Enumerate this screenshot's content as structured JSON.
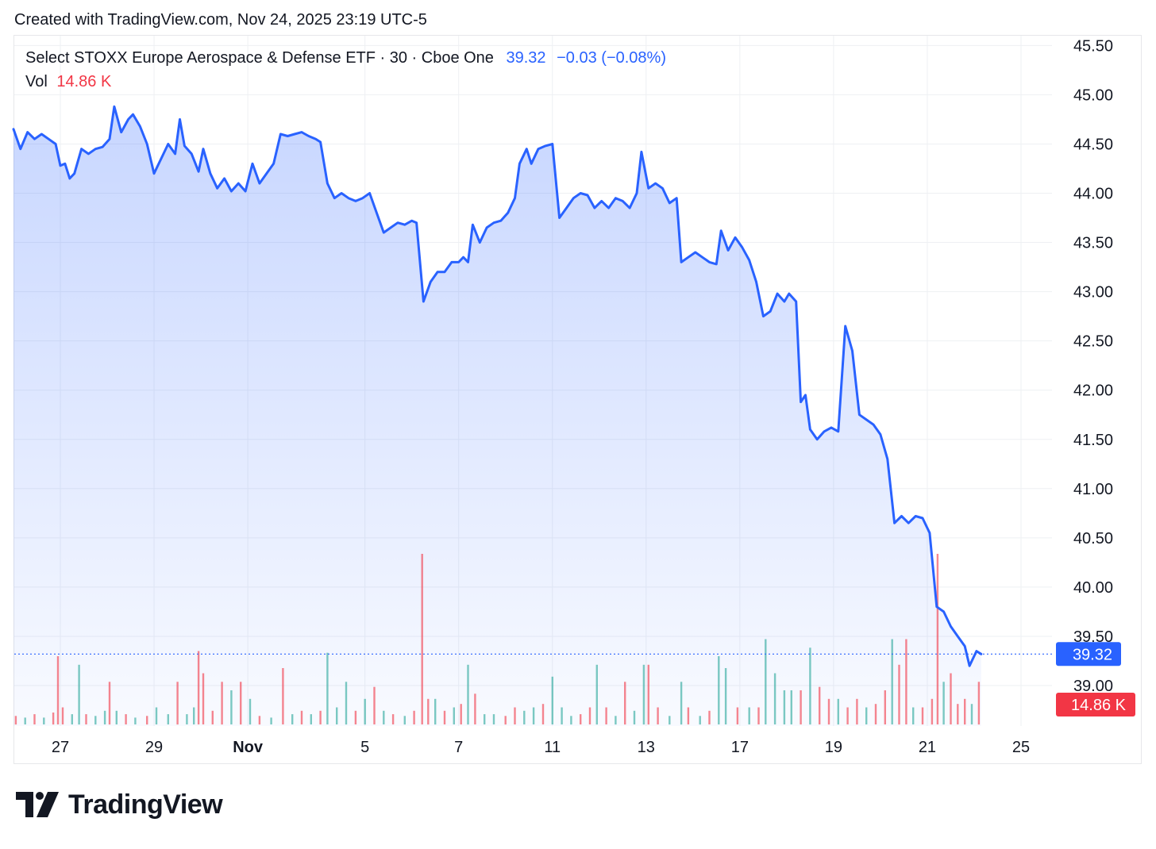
{
  "header": {
    "created_text": "Created with TradingView.com, Nov 24, 2025 23:19 UTC-5"
  },
  "legend": {
    "symbol": "Select STOXX Europe Aerospace & Defense ETF · 30 · Cboe One",
    "price": "39.32",
    "change": "−0.03 (−0.08%)",
    "vol_label": "Vol",
    "vol_value": "14.86 K"
  },
  "brand": {
    "text": "TradingView",
    "logo_icon": "tradingview-logo-icon"
  },
  "colors": {
    "line": "#2962ff",
    "vol_up": "#26a69a",
    "vol_down": "#f23645",
    "price_badge": "#2962ff",
    "vol_badge": "#f23645"
  },
  "chart_data": {
    "type": "area",
    "title": "",
    "xlabel": "",
    "ylabel": "",
    "ylim": [
      38.6,
      45.62
    ],
    "yticks": [
      "39.00",
      "39.50",
      "40.00",
      "40.50",
      "41.00",
      "41.50",
      "42.00",
      "42.50",
      "43.00",
      "43.50",
      "44.00",
      "44.50",
      "45.00",
      "45.50"
    ],
    "xticks": [
      {
        "label": "27",
        "x": 1
      },
      {
        "label": "29",
        "x": 3
      },
      {
        "label": "Nov",
        "x": 5
      },
      {
        "label": "5",
        "x": 7.5
      },
      {
        "label": "7",
        "x": 9.5
      },
      {
        "label": "11",
        "x": 11.5
      },
      {
        "label": "13",
        "x": 13.5
      },
      {
        "label": "17",
        "x": 15.5
      },
      {
        "label": "19",
        "x": 17.5
      },
      {
        "label": "21",
        "x": 19.5
      },
      {
        "label": "25",
        "x": 21.5
      }
    ],
    "x_range": [
      0,
      22.7
    ],
    "last_price": 39.32,
    "last_price_label": "39.32",
    "last_volume_label": "14.86 K",
    "series": [
      {
        "values_xy": [
          [
            0,
            44.65
          ],
          [
            0.15,
            44.45
          ],
          [
            0.3,
            44.62
          ],
          [
            0.45,
            44.55
          ],
          [
            0.6,
            44.6
          ],
          [
            0.75,
            44.55
          ],
          [
            0.9,
            44.5
          ],
          [
            1.0,
            44.28
          ],
          [
            1.1,
            44.3
          ],
          [
            1.2,
            44.15
          ],
          [
            1.3,
            44.2
          ],
          [
            1.45,
            44.45
          ],
          [
            1.6,
            44.4
          ],
          [
            1.75,
            44.45
          ],
          [
            1.9,
            44.47
          ],
          [
            2.05,
            44.55
          ],
          [
            2.15,
            44.88
          ],
          [
            2.3,
            44.62
          ],
          [
            2.45,
            44.75
          ],
          [
            2.55,
            44.8
          ],
          [
            2.7,
            44.68
          ],
          [
            2.85,
            44.5
          ],
          [
            3.0,
            44.2
          ],
          [
            3.15,
            44.35
          ],
          [
            3.3,
            44.5
          ],
          [
            3.45,
            44.4
          ],
          [
            3.55,
            44.75
          ],
          [
            3.65,
            44.48
          ],
          [
            3.8,
            44.4
          ],
          [
            3.95,
            44.22
          ],
          [
            4.05,
            44.45
          ],
          [
            4.2,
            44.2
          ],
          [
            4.35,
            44.05
          ],
          [
            4.5,
            44.15
          ],
          [
            4.65,
            44.02
          ],
          [
            4.8,
            44.1
          ],
          [
            4.95,
            44.02
          ],
          [
            5.1,
            44.3
          ],
          [
            5.25,
            44.1
          ],
          [
            5.4,
            44.2
          ],
          [
            5.55,
            44.3
          ],
          [
            5.7,
            44.6
          ],
          [
            5.85,
            44.58
          ],
          [
            6.0,
            44.6
          ],
          [
            6.15,
            44.62
          ],
          [
            6.3,
            44.58
          ],
          [
            6.45,
            44.55
          ],
          [
            6.55,
            44.52
          ],
          [
            6.7,
            44.1
          ],
          [
            6.85,
            43.95
          ],
          [
            7.0,
            44.0
          ],
          [
            7.15,
            43.95
          ],
          [
            7.3,
            43.92
          ],
          [
            7.45,
            43.95
          ],
          [
            7.6,
            44.0
          ],
          [
            7.75,
            43.8
          ],
          [
            7.9,
            43.6
          ],
          [
            8.05,
            43.65
          ],
          [
            8.2,
            43.7
          ],
          [
            8.35,
            43.68
          ],
          [
            8.5,
            43.72
          ],
          [
            8.6,
            43.7
          ],
          [
            8.75,
            42.9
          ],
          [
            8.9,
            43.1
          ],
          [
            9.05,
            43.2
          ],
          [
            9.2,
            43.2
          ],
          [
            9.35,
            43.3
          ],
          [
            9.5,
            43.3
          ],
          [
            9.6,
            43.35
          ],
          [
            9.7,
            43.3
          ],
          [
            9.8,
            43.68
          ],
          [
            9.95,
            43.5
          ],
          [
            10.1,
            43.65
          ],
          [
            10.25,
            43.7
          ],
          [
            10.4,
            43.72
          ],
          [
            10.55,
            43.8
          ],
          [
            10.7,
            43.95
          ],
          [
            10.8,
            44.3
          ],
          [
            10.95,
            44.45
          ],
          [
            11.05,
            44.3
          ],
          [
            11.2,
            44.45
          ],
          [
            11.35,
            44.48
          ],
          [
            11.5,
            44.5
          ],
          [
            11.65,
            43.75
          ],
          [
            11.8,
            43.85
          ],
          [
            11.95,
            43.95
          ],
          [
            12.1,
            44.0
          ],
          [
            12.25,
            43.98
          ],
          [
            12.4,
            43.85
          ],
          [
            12.55,
            43.92
          ],
          [
            12.7,
            43.85
          ],
          [
            12.85,
            43.95
          ],
          [
            13.0,
            43.92
          ],
          [
            13.15,
            43.85
          ],
          [
            13.3,
            44.0
          ],
          [
            13.4,
            44.42
          ],
          [
            13.55,
            44.05
          ],
          [
            13.7,
            44.1
          ],
          [
            13.85,
            44.05
          ],
          [
            14.0,
            43.9
          ],
          [
            14.15,
            43.95
          ],
          [
            14.25,
            43.3
          ],
          [
            14.4,
            43.35
          ],
          [
            14.55,
            43.4
          ],
          [
            14.7,
            43.35
          ],
          [
            14.85,
            43.3
          ],
          [
            15.0,
            43.28
          ],
          [
            15.1,
            43.62
          ],
          [
            15.25,
            43.42
          ],
          [
            15.4,
            43.55
          ],
          [
            15.55,
            43.45
          ],
          [
            15.7,
            43.32
          ],
          [
            15.85,
            43.1
          ],
          [
            16.0,
            42.75
          ],
          [
            16.15,
            42.8
          ],
          [
            16.3,
            42.98
          ],
          [
            16.45,
            42.9
          ],
          [
            16.55,
            42.98
          ],
          [
            16.7,
            42.9
          ],
          [
            16.8,
            41.88
          ],
          [
            16.9,
            41.95
          ],
          [
            17.0,
            41.6
          ],
          [
            17.15,
            41.5
          ],
          [
            17.3,
            41.58
          ],
          [
            17.45,
            41.62
          ],
          [
            17.6,
            41.58
          ],
          [
            17.75,
            42.65
          ],
          [
            17.9,
            42.4
          ],
          [
            18.05,
            41.75
          ],
          [
            18.2,
            41.7
          ],
          [
            18.35,
            41.65
          ],
          [
            18.5,
            41.55
          ],
          [
            18.65,
            41.3
          ],
          [
            18.8,
            40.65
          ],
          [
            18.95,
            40.72
          ],
          [
            19.1,
            40.65
          ],
          [
            19.25,
            40.72
          ],
          [
            19.4,
            40.7
          ],
          [
            19.55,
            40.55
          ],
          [
            19.7,
            39.8
          ],
          [
            19.85,
            39.75
          ],
          [
            20.0,
            39.6
          ],
          [
            20.15,
            39.5
          ],
          [
            20.3,
            39.4
          ],
          [
            20.4,
            39.2
          ],
          [
            20.55,
            39.35
          ],
          [
            20.65,
            39.32
          ]
        ]
      }
    ],
    "volume": {
      "ylim": [
        0,
        1.0
      ],
      "bars": [
        [
          0.05,
          0.05,
          "d"
        ],
        [
          0.25,
          0.04,
          "u"
        ],
        [
          0.45,
          0.06,
          "d"
        ],
        [
          0.65,
          0.04,
          "u"
        ],
        [
          0.85,
          0.07,
          "d"
        ],
        [
          0.95,
          0.4,
          "d"
        ],
        [
          1.05,
          0.1,
          "d"
        ],
        [
          1.25,
          0.06,
          "u"
        ],
        [
          1.4,
          0.35,
          "u"
        ],
        [
          1.55,
          0.06,
          "d"
        ],
        [
          1.75,
          0.05,
          "u"
        ],
        [
          1.95,
          0.08,
          "u"
        ],
        [
          2.05,
          0.25,
          "d"
        ],
        [
          2.2,
          0.08,
          "u"
        ],
        [
          2.4,
          0.06,
          "d"
        ],
        [
          2.6,
          0.04,
          "u"
        ],
        [
          2.85,
          0.05,
          "d"
        ],
        [
          3.05,
          0.1,
          "u"
        ],
        [
          3.3,
          0.06,
          "u"
        ],
        [
          3.5,
          0.25,
          "d"
        ],
        [
          3.7,
          0.06,
          "u"
        ],
        [
          3.85,
          0.1,
          "u"
        ],
        [
          3.95,
          0.43,
          "d"
        ],
        [
          4.05,
          0.3,
          "d"
        ],
        [
          4.25,
          0.08,
          "d"
        ],
        [
          4.45,
          0.25,
          "d"
        ],
        [
          4.65,
          0.2,
          "u"
        ],
        [
          4.85,
          0.25,
          "d"
        ],
        [
          5.05,
          0.15,
          "u"
        ],
        [
          5.25,
          0.05,
          "d"
        ],
        [
          5.5,
          0.04,
          "u"
        ],
        [
          5.75,
          0.33,
          "d"
        ],
        [
          5.95,
          0.06,
          "u"
        ],
        [
          6.15,
          0.08,
          "d"
        ],
        [
          6.35,
          0.06,
          "u"
        ],
        [
          6.55,
          0.08,
          "d"
        ],
        [
          6.7,
          0.42,
          "u"
        ],
        [
          6.9,
          0.1,
          "u"
        ],
        [
          7.1,
          0.25,
          "u"
        ],
        [
          7.3,
          0.08,
          "d"
        ],
        [
          7.5,
          0.15,
          "u"
        ],
        [
          7.7,
          0.22,
          "d"
        ],
        [
          7.9,
          0.08,
          "u"
        ],
        [
          8.1,
          0.06,
          "d"
        ],
        [
          8.35,
          0.05,
          "u"
        ],
        [
          8.55,
          0.08,
          "d"
        ],
        [
          8.72,
          1.0,
          "d"
        ],
        [
          8.85,
          0.15,
          "d"
        ],
        [
          9.0,
          0.15,
          "u"
        ],
        [
          9.2,
          0.08,
          "d"
        ],
        [
          9.4,
          0.1,
          "u"
        ],
        [
          9.55,
          0.12,
          "d"
        ],
        [
          9.7,
          0.35,
          "u"
        ],
        [
          9.85,
          0.18,
          "d"
        ],
        [
          10.05,
          0.06,
          "u"
        ],
        [
          10.25,
          0.06,
          "u"
        ],
        [
          10.5,
          0.05,
          "d"
        ],
        [
          10.7,
          0.1,
          "d"
        ],
        [
          10.9,
          0.08,
          "u"
        ],
        [
          11.1,
          0.1,
          "u"
        ],
        [
          11.3,
          0.12,
          "d"
        ],
        [
          11.5,
          0.28,
          "u"
        ],
        [
          11.7,
          0.1,
          "u"
        ],
        [
          11.9,
          0.05,
          "u"
        ],
        [
          12.1,
          0.06,
          "d"
        ],
        [
          12.3,
          0.1,
          "d"
        ],
        [
          12.45,
          0.35,
          "u"
        ],
        [
          12.65,
          0.1,
          "d"
        ],
        [
          12.85,
          0.05,
          "u"
        ],
        [
          13.05,
          0.25,
          "d"
        ],
        [
          13.25,
          0.08,
          "u"
        ],
        [
          13.45,
          0.35,
          "u"
        ],
        [
          13.55,
          0.35,
          "d"
        ],
        [
          13.75,
          0.1,
          "d"
        ],
        [
          14.0,
          0.05,
          "u"
        ],
        [
          14.25,
          0.25,
          "u"
        ],
        [
          14.4,
          0.1,
          "d"
        ],
        [
          14.65,
          0.05,
          "u"
        ],
        [
          14.85,
          0.08,
          "d"
        ],
        [
          15.05,
          0.4,
          "u"
        ],
        [
          15.2,
          0.33,
          "u"
        ],
        [
          15.45,
          0.1,
          "d"
        ],
        [
          15.7,
          0.1,
          "u"
        ],
        [
          15.9,
          0.1,
          "d"
        ],
        [
          16.05,
          0.5,
          "u"
        ],
        [
          16.25,
          0.3,
          "u"
        ],
        [
          16.45,
          0.2,
          "u"
        ],
        [
          16.6,
          0.2,
          "u"
        ],
        [
          16.8,
          0.2,
          "d"
        ],
        [
          17.0,
          0.45,
          "u"
        ],
        [
          17.2,
          0.22,
          "d"
        ],
        [
          17.4,
          0.15,
          "d"
        ],
        [
          17.6,
          0.15,
          "u"
        ],
        [
          17.8,
          0.1,
          "d"
        ],
        [
          18.0,
          0.15,
          "d"
        ],
        [
          18.2,
          0.1,
          "u"
        ],
        [
          18.4,
          0.12,
          "d"
        ],
        [
          18.6,
          0.2,
          "d"
        ],
        [
          18.75,
          0.5,
          "u"
        ],
        [
          18.9,
          0.35,
          "d"
        ],
        [
          19.05,
          0.5,
          "d"
        ],
        [
          19.2,
          0.1,
          "u"
        ],
        [
          19.4,
          0.1,
          "d"
        ],
        [
          19.6,
          0.15,
          "d"
        ],
        [
          19.72,
          1.0,
          "d"
        ],
        [
          19.85,
          0.25,
          "u"
        ],
        [
          20.0,
          0.3,
          "d"
        ],
        [
          20.15,
          0.12,
          "d"
        ],
        [
          20.3,
          0.15,
          "d"
        ],
        [
          20.45,
          0.12,
          "u"
        ],
        [
          20.6,
          0.25,
          "d"
        ]
      ]
    }
  }
}
